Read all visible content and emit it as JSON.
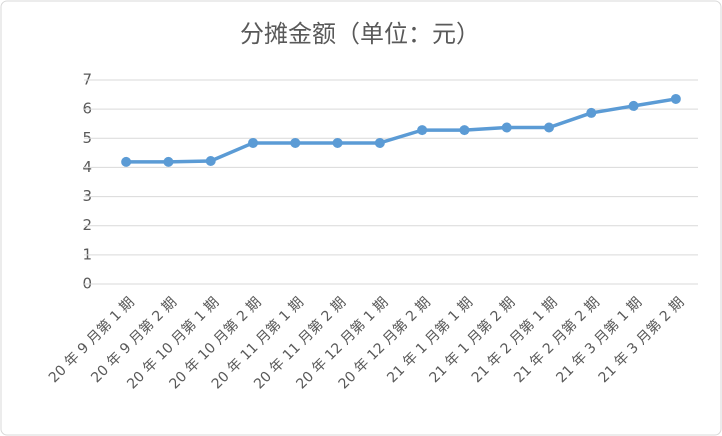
{
  "chart_data": {
    "type": "line",
    "title": "分摊金额（单位：元）",
    "categories": [
      "20 年 9 月第 1 期",
      "20 年 9 月第 2 期",
      "20 年 10 月第 1 期",
      "20 年 10 月第 2 期",
      "20 年 11 月第 1 期",
      "20 年 11 月第 2 期",
      "20 年 12 月第 1 期",
      "20 年 12 月第 2 期",
      "21 年 1 月第 1 期",
      "21 年 1 月第 2 期",
      "21 年 2 月第 1 期",
      "21 年 2 月第 2 期",
      "21 年 3 月第 1 期",
      "21 年 3 月第 2 期"
    ],
    "values": [
      4.19,
      4.19,
      4.22,
      4.84,
      4.84,
      4.84,
      4.84,
      5.28,
      5.28,
      5.37,
      5.37,
      5.87,
      6.11,
      6.35
    ],
    "color": "#5b9bd5",
    "ylim": [
      0,
      7
    ],
    "yticks": [
      0,
      1,
      2,
      3,
      4,
      5,
      6,
      7
    ],
    "grid": true
  }
}
